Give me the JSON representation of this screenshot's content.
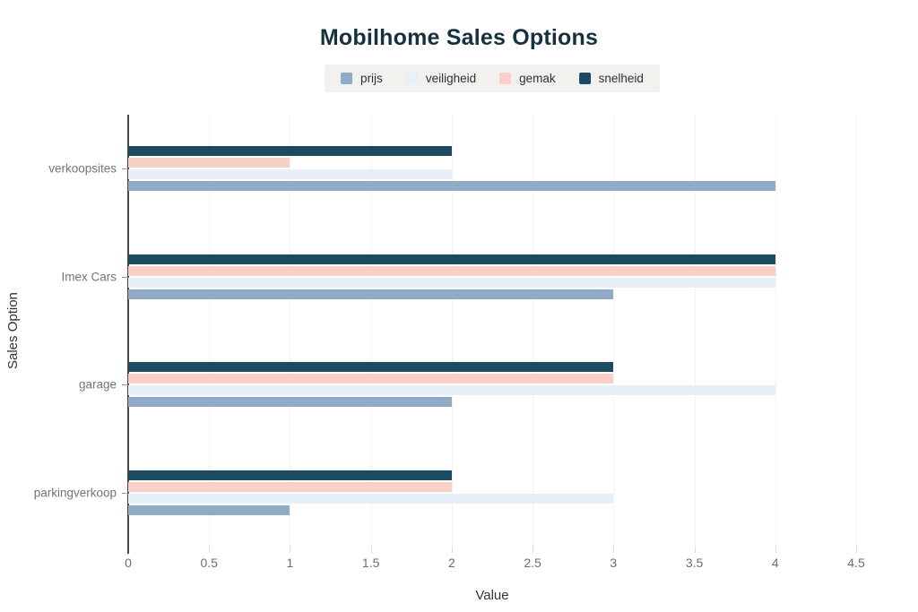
{
  "colors": {
    "background": "#ffffff",
    "title": "#15323e",
    "axis_line": "#474747",
    "grid_line": "#f1f1f1",
    "tick_label": "#6e6e6e",
    "category_label": "#757575",
    "axis_title": "#333333",
    "legend_background": "#f2f1ed",
    "legend_text": "#26323a"
  },
  "chart_data": {
    "type": "bar",
    "orientation": "horizontal",
    "title": "Mobilhome Sales Options",
    "xlabel": "Value",
    "ylabel": "Sales Option",
    "categories": [
      "verkoopsites",
      "Imex Cars",
      "garage",
      "parkingverkoop"
    ],
    "series": [
      {
        "name": "prijs",
        "color": "#8fabc6",
        "values": [
          4,
          3,
          2,
          1
        ]
      },
      {
        "name": "veiligheid",
        "color": "#e7eff9",
        "values": [
          2,
          4,
          4,
          3
        ]
      },
      {
        "name": "gemak",
        "color": "#f8d0c7",
        "values": [
          1,
          4,
          3,
          2
        ]
      },
      {
        "name": "snelheid",
        "color": "#1d4a63",
        "values": [
          2,
          4,
          3,
          2
        ]
      }
    ],
    "bar_display_order_top_to_bottom": [
      "snelheid",
      "gemak",
      "veiligheid",
      "prijs"
    ],
    "xlim": [
      0,
      4.5
    ],
    "xticks": [
      "0",
      "0.5",
      "1",
      "1.5",
      "2",
      "2.5",
      "3",
      "3.5",
      "4",
      "4.5"
    ],
    "grid": true,
    "legend_position": "top"
  }
}
